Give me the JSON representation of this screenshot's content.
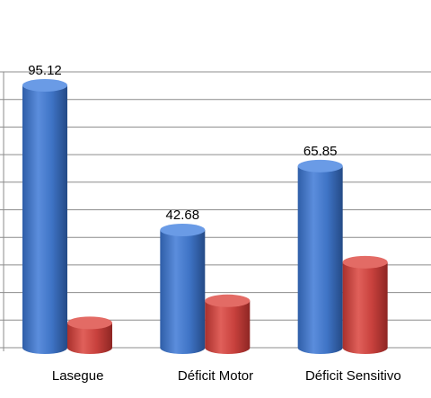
{
  "chart_data": {
    "type": "bar",
    "title": "",
    "categories": [
      "Lasegue",
      "Déficit Motor",
      "Déficit Sensitivo"
    ],
    "series": [
      {
        "values": [
          95.12,
          42.68,
          65.85
        ],
        "color": "#3f74c6"
      },
      {
        "values": [
          9,
          17,
          31
        ],
        "color": "#c8413d"
      }
    ],
    "data_labels": [
      "95.12",
      "42.68",
      "65.85"
    ],
    "ylim": [
      0,
      100
    ],
    "grid": true,
    "legend": "none",
    "style": "3d-cylinder"
  }
}
